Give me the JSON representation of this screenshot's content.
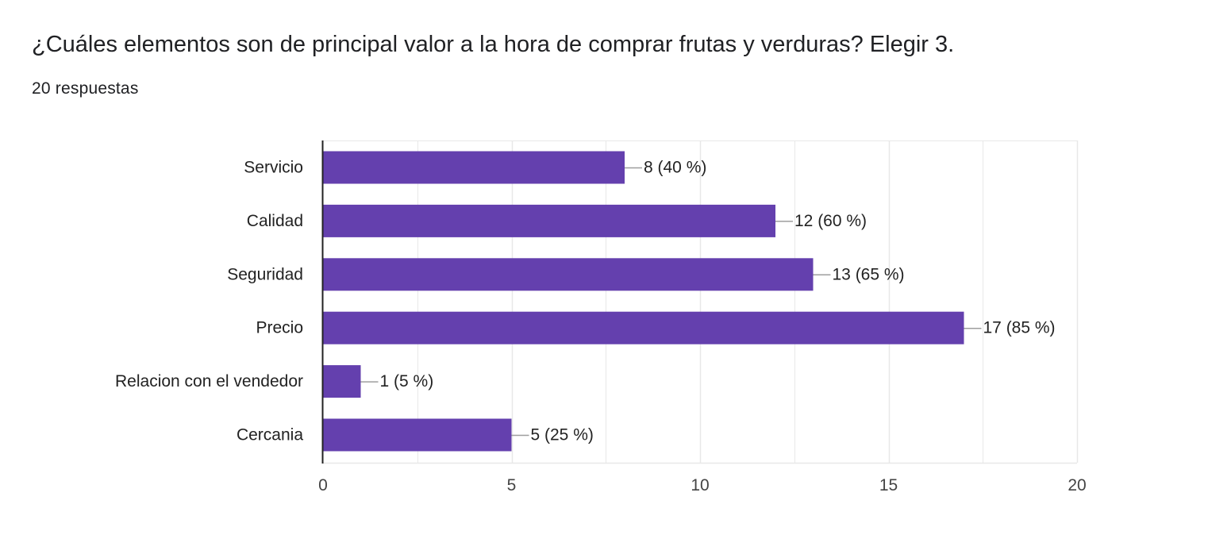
{
  "header": {
    "title": "¿Cuáles elementos son de principal valor a la hora de comprar frutas y verduras? Elegir 3.",
    "responses": "20 respuestas"
  },
  "colors": {
    "bar": "#6440ae",
    "gridline": "#e8e8e8",
    "axis": "#222222",
    "connector": "#9e9e9e"
  },
  "chart_data": {
    "type": "bar",
    "orientation": "horizontal",
    "title": "",
    "xlabel": "",
    "ylabel": "",
    "categories": [
      "Servicio",
      "Calidad",
      "Seguridad",
      "Precio",
      "Relacion con el vendedor",
      "Cercania"
    ],
    "values": [
      8,
      12,
      13,
      17,
      1,
      5
    ],
    "data_labels": [
      "8 (40 %)",
      "12 (60 %)",
      "13 (65 %)",
      "17 (85 %)",
      "1 (5 %)",
      "5 (25 %)"
    ],
    "xlim": [
      0,
      20
    ],
    "xticks": [
      0,
      5,
      10,
      15,
      20
    ],
    "grid": true,
    "legend": "none"
  }
}
